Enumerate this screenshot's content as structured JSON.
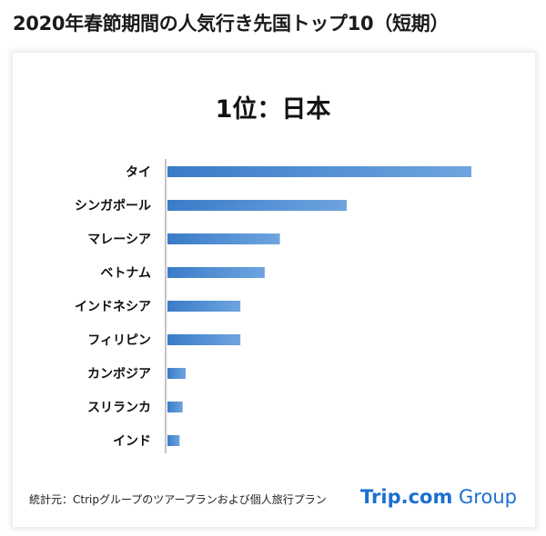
{
  "title": "2020年春節期間の人気行き先国トップ10（短期）",
  "subtitle": "1位：日本",
  "source": "統計元：Ctripグループのツアープランおよび個人旅行プラン",
  "brand": {
    "trip": "Trip.com",
    "group": " Group"
  },
  "colors": {
    "bar": "#3a7cc8",
    "bar_light": "#6ea4df",
    "brand": "#1c6fd1"
  },
  "chart_data": {
    "type": "bar",
    "orientation": "horizontal",
    "title": "1位：日本",
    "categories": [
      "タイ",
      "シンガポール",
      "マレーシア",
      "ベトナム",
      "インドネシア",
      "フィリピン",
      "カンボジア",
      "スリランカ",
      "インド"
    ],
    "values": [
      100,
      59,
      37,
      32,
      24,
      24,
      6,
      5,
      4
    ],
    "xlim": [
      0,
      100
    ],
    "axis_labels_visible": false,
    "grid": false
  }
}
